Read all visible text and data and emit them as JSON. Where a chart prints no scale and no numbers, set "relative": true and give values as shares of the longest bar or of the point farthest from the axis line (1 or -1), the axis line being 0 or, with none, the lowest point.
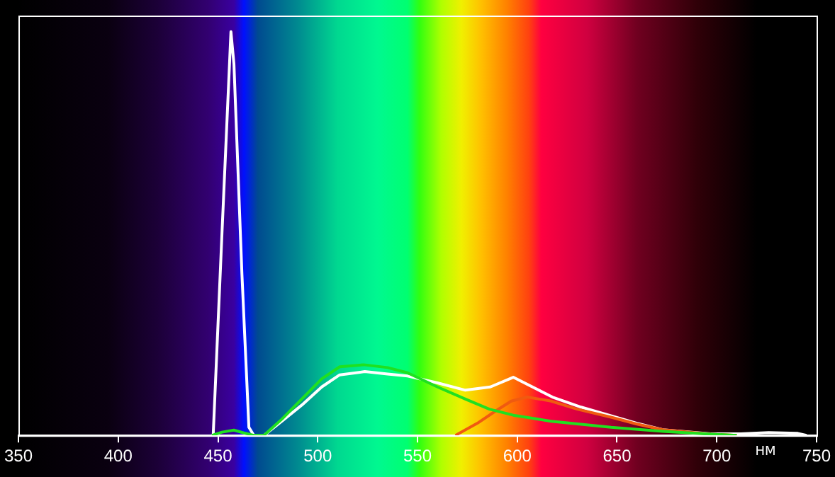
{
  "chart_data": {
    "type": "line",
    "xlabel": "НМ",
    "relative": true,
    "xlim": [
      350,
      750
    ],
    "xticks": [
      350,
      400,
      450,
      500,
      550,
      600,
      650,
      700,
      750
    ],
    "grid": false,
    "legend": false,
    "marker": "none",
    "line_style": "solid",
    "series": [
      {
        "color": "#20e020",
        "x": [
          447,
          452,
          458,
          463,
          468,
          473,
          482,
          492,
          502,
          511,
          523,
          535,
          545,
          560,
          574,
          586,
          598,
          617,
          647,
          673,
          697,
          710
        ],
        "values": [
          0,
          0.008,
          0.013,
          0.006,
          0,
          0,
          0.04,
          0.09,
          0.14,
          0.17,
          0.175,
          0.168,
          0.155,
          0.12,
          0.09,
          0.065,
          0.05,
          0.035,
          0.02,
          0.01,
          0.003,
          0
        ]
      },
      {
        "color": "#f05a10",
        "x": [
          569,
          580,
          589,
          597,
          605,
          617,
          630,
          647,
          660,
          673,
          697,
          710
        ],
        "values": [
          0,
          0.03,
          0.06,
          0.085,
          0.095,
          0.085,
          0.065,
          0.045,
          0.028,
          0.014,
          0.003,
          0
        ]
      },
      {
        "color": "#ffffff",
        "x": [
          447.6,
          452,
          456.5,
          458,
          462,
          465.5,
          468,
          473,
          482,
          492,
          502,
          511,
          523.6,
          535,
          545,
          560,
          574,
          586.5,
          598,
          617.6,
          632,
          646.6,
          660,
          673,
          697,
          712,
          726,
          740.6,
          745
        ],
        "values": [
          0,
          0.5,
          1,
          0.92,
          0.4,
          0.02,
          0,
          0,
          0.035,
          0.075,
          0.12,
          0.15,
          0.158,
          0.152,
          0.147,
          0.13,
          0.112,
          0.12,
          0.144,
          0.095,
          0.07,
          0.049,
          0.03,
          0.014,
          0.004,
          0.004,
          0.007,
          0.005,
          0
        ]
      }
    ]
  }
}
